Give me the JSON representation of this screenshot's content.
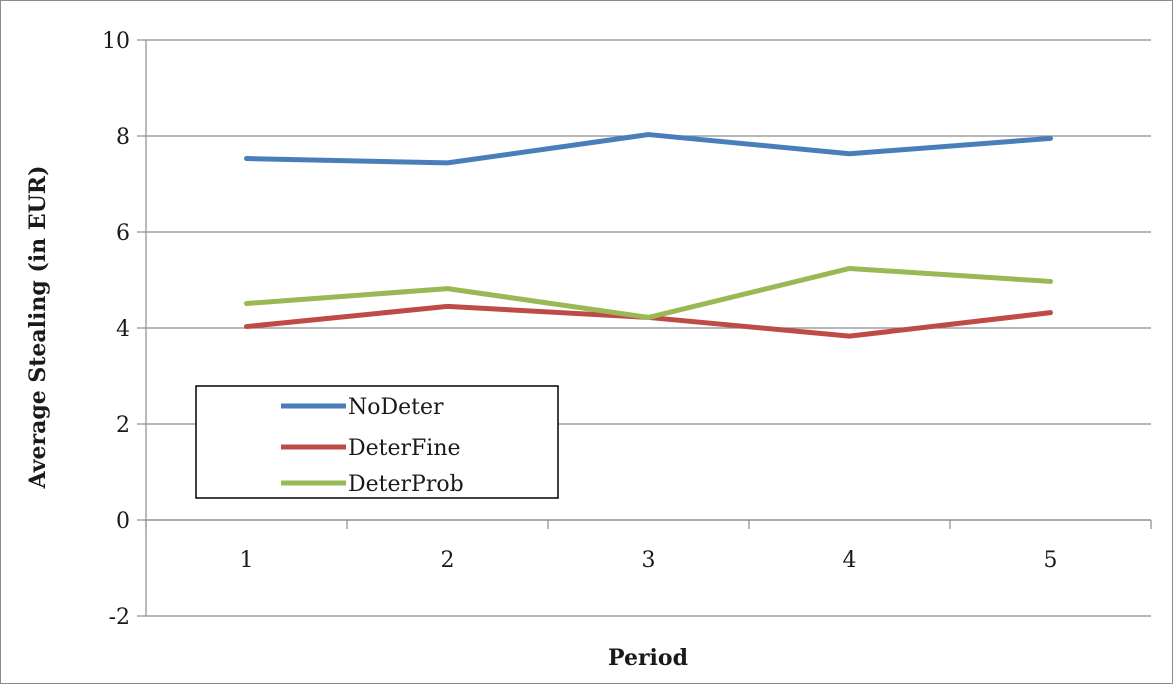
{
  "chart_data": {
    "type": "line",
    "title": "",
    "xlabel": "Period",
    "ylabel": "Average Stealing (in EUR)",
    "categories": [
      "1",
      "2",
      "3",
      "4",
      "5"
    ],
    "ylim": [
      -2,
      10
    ],
    "yticks": [
      "-2",
      "0",
      "2",
      "4",
      "6",
      "8",
      "10"
    ],
    "grid": true,
    "legend_position": "bottom-left",
    "series": [
      {
        "name": "NoDeter",
        "color": "#4a7ebb",
        "values": [
          7.53,
          7.44,
          8.03,
          7.63,
          7.95
        ]
      },
      {
        "name": "DeterFine",
        "color": "#be4b48",
        "values": [
          4.03,
          4.45,
          4.22,
          3.83,
          4.32
        ]
      },
      {
        "name": "DeterProb",
        "color": "#98b954",
        "values": [
          4.51,
          4.82,
          4.22,
          5.24,
          4.97
        ]
      }
    ]
  }
}
